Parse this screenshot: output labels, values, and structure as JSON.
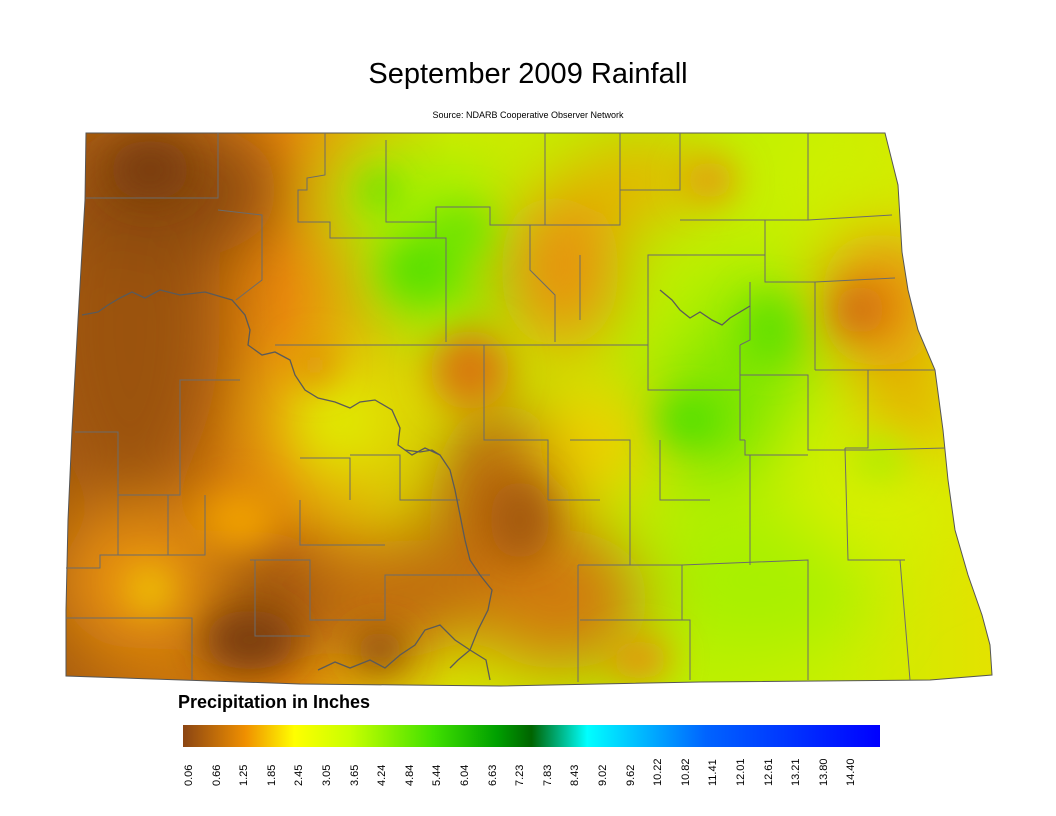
{
  "title": "September 2009 Rainfall",
  "source": "Source: NDARB Cooperative Observer Network",
  "legend": {
    "title": "Precipitation in Inches",
    "ticks": [
      "0.06",
      "0.66",
      "1.25",
      "1.85",
      "2.45",
      "3.05",
      "3.65",
      "4.24",
      "4.84",
      "5.44",
      "6.04",
      "6.63",
      "7.23",
      "7.83",
      "8.43",
      "9.02",
      "9.62",
      "10.22",
      "10.82",
      "11.41",
      "12.01",
      "12.61",
      "13.21",
      "13.80",
      "14.40"
    ],
    "colors": [
      "#8b4513",
      "#f09000",
      "#ffff00",
      "#8aff00",
      "#00c800",
      "#006400",
      "#00ffff",
      "#0078ff",
      "#0000ff"
    ]
  },
  "map": {
    "region": "North Dakota",
    "palette": {
      "dry_brown": "#9b5210",
      "orange": "#e8890c",
      "yellow": "#f0f000",
      "lime": "#a8f000",
      "green": "#48e000",
      "county_line": "#6b6b6b"
    }
  }
}
